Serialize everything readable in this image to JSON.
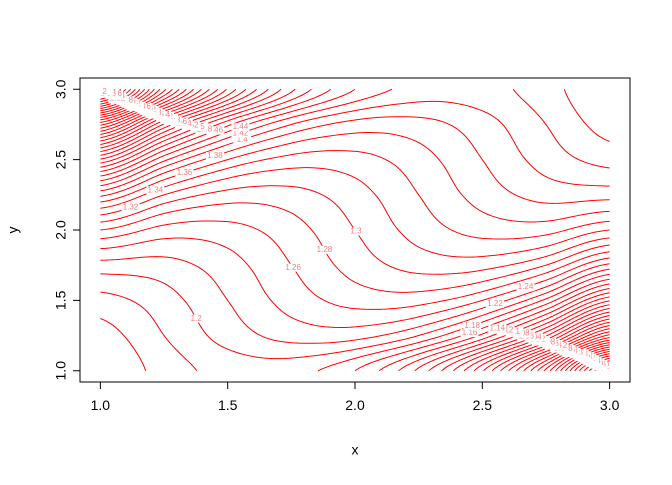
{
  "chart_data": {
    "type": "contour",
    "xlabel": "x",
    "ylabel": "y",
    "color": "#ff0000",
    "label_color": "#f08080",
    "xlim": [
      0.92,
      3.08
    ],
    "ylim": [
      0.92,
      3.08
    ],
    "xticks": [
      {
        "value": 1,
        "label": "1.0"
      },
      1.5,
      {
        "value": 2,
        "label": "2.0"
      },
      2.5,
      {
        "value": 3,
        "label": "3.0"
      }
    ],
    "yticks": [
      {
        "value": 1,
        "label": "1.0"
      },
      1.5,
      {
        "value": 2,
        "label": "2.0"
      },
      2.5,
      {
        "value": 3,
        "label": "3.0"
      }
    ],
    "x": [
      1,
      1.25,
      1.5,
      1.75,
      2,
      2.25,
      2.5,
      2.75,
      3
    ],
    "y": [
      1,
      1.25,
      1.5,
      1.75,
      2,
      2.25,
      2.5,
      2.75,
      3
    ],
    "z": [
      [
        1.14,
        1.1684,
        1.1875,
        1.1878,
        1.16,
        1.0947,
        0.9825,
        0.8141,
        0.58
      ],
      [
        1.1516,
        1.18,
        1.2084,
        1.2275,
        1.2278,
        1.2,
        1.1347,
        1.0225,
        0.8541
      ],
      [
        1.1725,
        1.1916,
        1.22,
        1.2484,
        1.2675,
        1.2678,
        1.24,
        1.1747,
        1.0625
      ],
      [
        1.2122,
        1.2125,
        1.2316,
        1.26,
        1.2884,
        1.3075,
        1.3078,
        1.28,
        1.2147
      ],
      [
        1.28,
        1.2522,
        1.2525,
        1.2716,
        1.3,
        1.3284,
        1.3475,
        1.3478,
        1.32
      ],
      [
        1.3853,
        1.32,
        1.2922,
        1.2925,
        1.3116,
        1.34,
        1.3684,
        1.3875,
        1.3878
      ],
      [
        1.5375,
        1.4253,
        1.36,
        1.3322,
        1.3325,
        1.3516,
        1.38,
        1.4084,
        1.4275
      ],
      [
        1.7459,
        1.5775,
        1.4653,
        1.4,
        1.3722,
        1.3725,
        1.3916,
        1.42,
        1.4484
      ],
      [
        2.02,
        1.7859,
        1.6175,
        1.5053,
        1.44,
        1.4122,
        1.4125,
        1.4316,
        1.46
      ]
    ],
    "levels": [
      0.6,
      0.62,
      0.64,
      0.66,
      0.68,
      0.7,
      0.72,
      0.74,
      0.76,
      0.78,
      0.8,
      0.82,
      0.84,
      0.86,
      0.88,
      0.9,
      0.92,
      0.94,
      0.96,
      0.98,
      1,
      1.02,
      1.04,
      1.06,
      1.08,
      1.1,
      1.12,
      1.14,
      1.16,
      1.18,
      1.2,
      1.22,
      1.24,
      1.26,
      1.28,
      1.3,
      1.32,
      1.34,
      1.36,
      1.38,
      1.4,
      1.42,
      1.44,
      1.46,
      1.48,
      1.5,
      1.52,
      1.54,
      1.56,
      1.58,
      1.6,
      1.62,
      1.64,
      1.66,
      1.68,
      1.7,
      1.72,
      1.74,
      1.76,
      1.78,
      1.8,
      1.82,
      1.84,
      1.86,
      1.88,
      1.9,
      1.92,
      1.94,
      1.96,
      1.98,
      2
    ]
  }
}
